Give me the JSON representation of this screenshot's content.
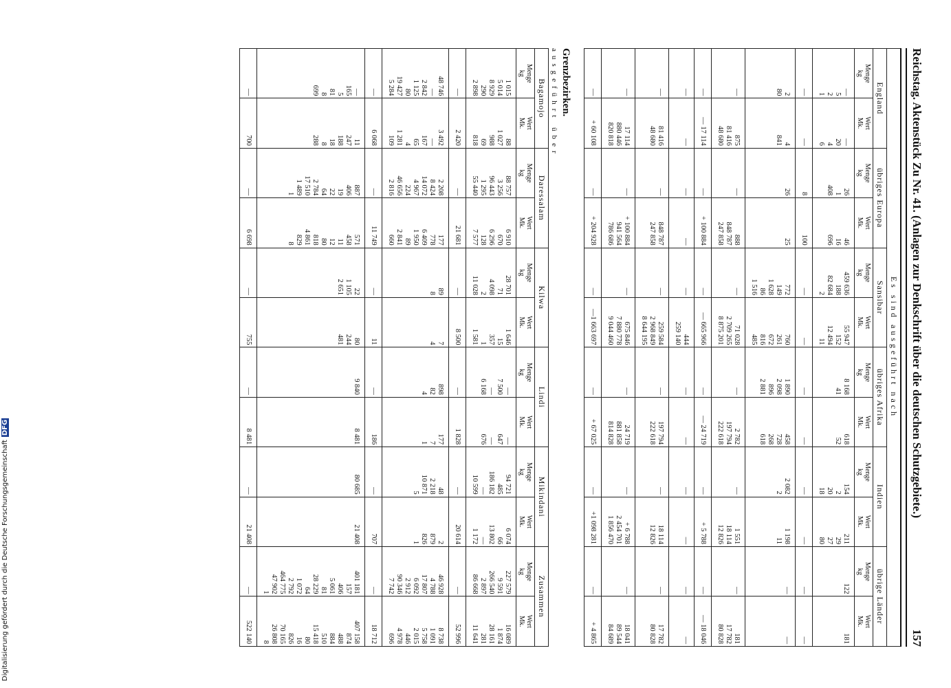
{
  "header": {
    "title": "Reichstag. Aktenstück Zu Nr. 41. (Anlagen zur Denkschrift über die deutschen Schutzgebiete.)",
    "page_number": "157"
  },
  "export_table": {
    "caption": "Es sind ausgeführt nach",
    "groups": [
      "England",
      "übriges Europa",
      "Sansibar",
      "übriges Afrika",
      "Indien",
      "übrige Länder"
    ],
    "subheaders": [
      "Menge\nkg",
      "Wert\nMk."
    ],
    "rows": [
      [
        "—\n5\n2\n1",
        "—\n20\n4\n6",
        "26\n1\n408",
        "46\n16\n696",
        "459 636\n188\n82 684\n2",
        "55 947\n152\n12 494\n11",
        "8 168\n41",
        "618\n52",
        "154\n2\n20\n18",
        "211\n29\n27\n80",
        "122",
        "181"
      ],
      [
        "—",
        "—",
        "8",
        "100",
        "—",
        "—",
        "—",
        "—",
        "—",
        "—",
        "—",
        "—"
      ],
      [
        "2\n80",
        "4\n841",
        "26",
        "25",
        "772\n149\n1 628\n86\n1 516",
        "760\n261\n672\n816\n485",
        "1 890\n2 098\n896\n2 881",
        "458\n728\n268\n618",
        "2 082\n2",
        "1 198\n11",
        "—",
        "—"
      ],
      [
        "—",
        "875\n81 416\n48 680",
        "—",
        "888\n848 787\n247 858",
        "—",
        "71 028\n2 709 265\n8 875 201",
        "—",
        "2 782\n197 794\n222 618",
        "—",
        "1 551\n18 114\n12 826",
        "—",
        "181\n17 782\n80 828"
      ],
      [
        "—",
        "— 17 114",
        "—",
        "+ 100 884",
        "—",
        "— 665 966",
        "—",
        "— 24 719",
        "—",
        "+ 5 788",
        "—",
        "— 18 046"
      ],
      [
        "—",
        "—",
        "—",
        "—",
        "—",
        "444\n259 140",
        "—",
        "—",
        "—",
        "—",
        "—",
        "—"
      ],
      [
        "—",
        "81 416\n48 680",
        "—",
        "848 787\n247 858",
        "—",
        "259 584\n2 968 849\n8 644 195",
        "—",
        "197 794\n222 618",
        "—",
        "18 114\n12 826",
        "—",
        "17 782\n80 828"
      ],
      [
        "—",
        "17 114\n880 446\n820 818",
        "—",
        "+ 100 884\n941 564\n786 686",
        "—",
        "675 846\n7 880 778\n9 044 460",
        "—",
        "24 719\n881 858\n814 828",
        "—",
        "+ 6 788\n2 454 701\n1 856 470",
        "—",
        "18 041\n89 544\n84 689"
      ],
      [
        "—",
        "+ 60 108",
        "—",
        "+ 204 928",
        "—",
        "—1 663 697",
        "—",
        "+ 67 025",
        "—",
        "+1 098 281",
        "—",
        "+ 4 865"
      ]
    ]
  },
  "border_table": {
    "title": "Grenzbezirken.",
    "caption": "ausgeführt über",
    "groups": [
      "Bagamojo",
      "Daressalam",
      "Kilwa",
      "Lindi",
      "Mikindani",
      "Zusammen"
    ],
    "subheaders": [
      "Menge\nkg",
      "Wert\nMk."
    ],
    "rows": [
      [
        "1 015\n5 014\n8 929\n290\n2 898",
        "88\n1 027\n988\n69\n818",
        "88 757\n3 256\n96 443\n1 295\n55 440",
        "6 910\n670\n6 296\n128\n7 577",
        "28 701\n71\n4 098\n2\n11 028",
        "1 646\n15\n357\n1\n1 581",
        "—\n7 500\n—\n6 168",
        "—\n647\n—\n676",
        "94 721\n485\n186 182\n—\n10 599",
        "6 074\n66\n13 802\n—\n1 172",
        "227 579\n9 591\n266 540\n2 897\n86 668",
        "16 089\n1 874\n28 161\n281\n11 641"
      ],
      [
        "—",
        "2 420",
        "—",
        "21 681",
        "—",
        "8 500",
        "—",
        "1 828",
        "—",
        "20 614",
        "—",
        "52 996"
      ],
      [
        "48 746\n—\n2 842\n1 125\n80\n19 427\n5 284",
        "3 492\n—\n167\n65\n4\n1 281\n109",
        "2 208\n8 424\n14 072\n4 967\n224\n46 656\n2 816",
        "177\n778\n6 409\n1 950\n89\n2 841\n660",
        "89\n8",
        "7\n4",
        "898\n82\n4",
        "177\n7\n1",
        "48\n2 218\n10 871\n5",
        "2\n879\n826\n1",
        "46 928\n4 788\n17 807\n6 092\n2 912\n90 346\n7 742",
        "8 738\n1 091\n5 758\n2 015\n446\n4 978\n696"
      ],
      [
        "—",
        "6 068",
        "—",
        "11 749",
        "—",
        "11",
        "—",
        "186",
        "—",
        "707",
        "—",
        "18 712"
      ],
      [
        "—\n165\n5\n81\n8\n699",
        "11\n247\n188\n18\n8\n288",
        "887\n406\n19\n22\n64\n2 784\n17 510\n1 489\n1",
        "571\n458\n11\n12\n80\n818\n4 861\n829\n8",
        "22\n1 105\n2 651",
        "80\n244\n481",
        "9 840",
        "8 481",
        "80 685",
        "21 408",
        "401 181\n157\n406\n5 061\n81\n28 229\n64\n1 072\n2 792\n464 775\n47 902\n1",
        "407 158\n874\n488\n884\n510\n15 418\n80\n16\n826\n70 165\n26 808\n8"
      ],
      [
        "—",
        "700",
        "—",
        "6 698",
        "—",
        "755",
        "—",
        "8 481",
        "—",
        "21 408",
        "—",
        "522 140"
      ]
    ]
  },
  "footer": {
    "text": "Digitalisierung gefördert durch die Deutsche Forschungsgemeinschaft",
    "logo": "DFG"
  }
}
